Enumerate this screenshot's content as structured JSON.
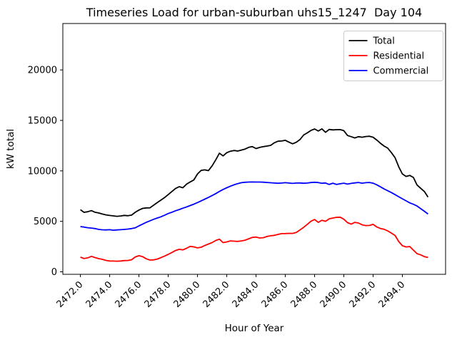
{
  "title": "Timeseries Load for urban-suburban uhs15_1247  Day 104",
  "chart_data": {
    "type": "line",
    "title": "Timeseries Load for urban-suburban uhs15_1247  Day 104",
    "xlabel": "Hour of Year",
    "ylabel": "kW total",
    "grid": false,
    "legend_position": "upper right",
    "x_start": 2472.0,
    "x_step": 0.25,
    "xlim": [
      2470.8,
      2496.95
    ],
    "ylim": [
      -250,
      24600
    ],
    "x_ticks": [
      2472,
      2474,
      2476,
      2478,
      2480,
      2482,
      2484,
      2486,
      2488,
      2490,
      2492,
      2494
    ],
    "x_tick_labels": [
      "2472.0",
      "2474.0",
      "2476.0",
      "2478.0",
      "2480.0",
      "2482.0",
      "2484.0",
      "2486.0",
      "2488.0",
      "2490.0",
      "2492.0",
      "2494.0"
    ],
    "x_tick_rotation": 45,
    "y_ticks": [
      0,
      5000,
      10000,
      15000,
      20000
    ],
    "y_tick_labels": [
      "0",
      "5000",
      "10000",
      "15000",
      "20000"
    ],
    "series": [
      {
        "name": "Total",
        "color": "#000000",
        "values": [
          6150,
          5890,
          5950,
          6060,
          5900,
          5830,
          5720,
          5640,
          5580,
          5540,
          5500,
          5530,
          5590,
          5550,
          5620,
          5900,
          6120,
          6280,
          6330,
          6340,
          6600,
          6850,
          7100,
          7350,
          7650,
          7950,
          8250,
          8430,
          8330,
          8680,
          8900,
          9100,
          9700,
          10050,
          10100,
          10020,
          10500,
          11100,
          11750,
          11480,
          11800,
          11950,
          12020,
          11960,
          12060,
          12160,
          12330,
          12400,
          12210,
          12320,
          12400,
          12460,
          12530,
          12780,
          12940,
          12960,
          13030,
          12840,
          12680,
          12830,
          13100,
          13550,
          13760,
          14000,
          14150,
          13950,
          14160,
          13820,
          14100,
          14060,
          14080,
          14090,
          13980,
          13500,
          13390,
          13260,
          13390,
          13330,
          13400,
          13430,
          13330,
          13050,
          12730,
          12460,
          12250,
          11800,
          11300,
          10400,
          9700,
          9450,
          9550,
          9350,
          8600,
          8270,
          7950,
          7400
        ]
      },
      {
        "name": "Residential",
        "color": "#ff0000",
        "values": [
          1450,
          1310,
          1380,
          1530,
          1410,
          1300,
          1230,
          1130,
          1070,
          1060,
          1050,
          1070,
          1110,
          1120,
          1200,
          1470,
          1590,
          1500,
          1290,
          1160,
          1180,
          1260,
          1400,
          1560,
          1730,
          1910,
          2110,
          2230,
          2170,
          2330,
          2520,
          2470,
          2370,
          2430,
          2600,
          2750,
          2900,
          3100,
          3230,
          2890,
          2960,
          3060,
          3030,
          3010,
          3060,
          3130,
          3270,
          3410,
          3440,
          3350,
          3380,
          3500,
          3570,
          3610,
          3700,
          3780,
          3790,
          3810,
          3800,
          3900,
          4150,
          4400,
          4700,
          5000,
          5180,
          4900,
          5110,
          5000,
          5250,
          5330,
          5400,
          5410,
          5210,
          4870,
          4720,
          4900,
          4830,
          4650,
          4580,
          4590,
          4700,
          4440,
          4290,
          4210,
          4050,
          3830,
          3600,
          3000,
          2580,
          2460,
          2500,
          2150,
          1800,
          1680,
          1500,
          1430
        ]
      },
      {
        "name": "Commercial",
        "color": "#0000ff",
        "values": [
          4480,
          4430,
          4370,
          4330,
          4280,
          4200,
          4160,
          4150,
          4170,
          4120,
          4150,
          4170,
          4200,
          4230,
          4280,
          4360,
          4550,
          4720,
          4900,
          5050,
          5200,
          5330,
          5450,
          5600,
          5770,
          5900,
          6050,
          6170,
          6300,
          6420,
          6560,
          6700,
          6860,
          7030,
          7200,
          7370,
          7560,
          7750,
          7960,
          8160,
          8330,
          8480,
          8620,
          8740,
          8830,
          8870,
          8890,
          8900,
          8890,
          8890,
          8880,
          8850,
          8820,
          8790,
          8770,
          8790,
          8830,
          8790,
          8760,
          8790,
          8800,
          8770,
          8790,
          8840,
          8870,
          8840,
          8770,
          8800,
          8650,
          8780,
          8650,
          8720,
          8780,
          8690,
          8760,
          8810,
          8850,
          8780,
          8830,
          8850,
          8780,
          8620,
          8420,
          8210,
          8030,
          7850,
          7640,
          7440,
          7230,
          7030,
          6830,
          6690,
          6520,
          6250,
          6000,
          5720
        ]
      }
    ]
  }
}
